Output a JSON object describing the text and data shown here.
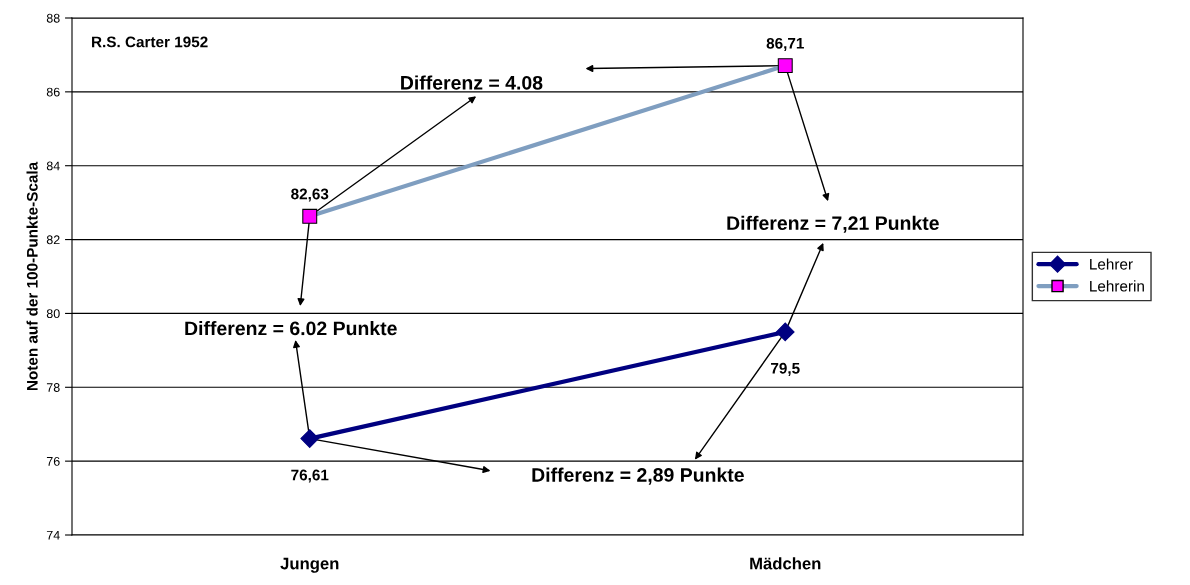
{
  "chart_data": {
    "type": "line",
    "categories": [
      "Jungen",
      "Mädchen"
    ],
    "ylabel": "Noten auf der 100-Punkte-Scala",
    "series": [
      {
        "name": "Lehrer",
        "color": "#000080",
        "values": [
          76.61,
          79.5
        ],
        "value_labels": [
          "76,61",
          "79,5"
        ],
        "marker": "diamond"
      },
      {
        "name": "Lehrerin",
        "color": "#7f9ec0",
        "values": [
          82.63,
          86.71
        ],
        "value_labels": [
          "82,63",
          "86,71"
        ],
        "marker": "square"
      }
    ],
    "ylim": [
      74,
      88
    ],
    "yticks": [
      74,
      76,
      78,
      80,
      82,
      84,
      86,
      88
    ],
    "grid": "y",
    "legend": "right",
    "annotations": [
      "R.S. Carter 1952",
      "Differenz = 4.08",
      "Differenz = 7,21 Punkte",
      "Differenz = 6.02 Punkte",
      "Differenz = 2,89 Punkte"
    ]
  }
}
